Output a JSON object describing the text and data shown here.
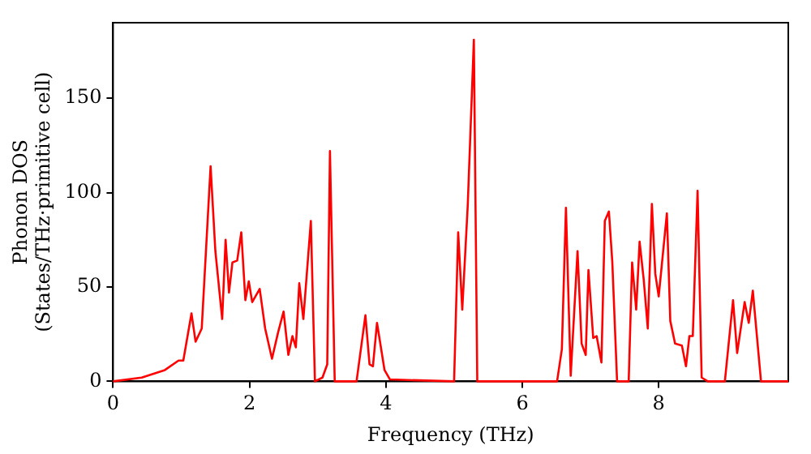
{
  "chart_data": {
    "type": "line",
    "xlabel": "Frequency (THz)",
    "ylabel": "Phonon DOS\n(States/THz·primitive cell)",
    "xlim": [
      0,
      9.9
    ],
    "ylim": [
      0,
      190
    ],
    "xticks": [
      0,
      2,
      4,
      6,
      8
    ],
    "yticks": [
      0,
      50,
      100,
      150
    ],
    "grid": false,
    "legend": false,
    "marker": "none",
    "line_style": "solid",
    "series": [
      {
        "color": "#ff0000",
        "x": [
          0,
          0.42,
          0.76,
          0.96,
          1.03,
          1.15,
          1.21,
          1.3,
          1.43,
          1.5,
          1.6,
          1.65,
          1.7,
          1.75,
          1.82,
          1.88,
          1.94,
          1.99,
          2.04,
          2.15,
          2.23,
          2.33,
          2.42,
          2.5,
          2.57,
          2.63,
          2.68,
          2.73,
          2.79,
          2.9,
          2.96,
          3.07,
          3.14,
          3.18,
          3.25,
          3.57,
          3.7,
          3.76,
          3.81,
          3.87,
          3.98,
          4.06,
          5.0,
          5.06,
          5.12,
          5.2,
          5.29,
          5.34,
          6.51,
          6.58,
          6.64,
          6.71,
          6.81,
          6.87,
          6.93,
          6.97,
          7.04,
          7.09,
          7.16,
          7.21,
          7.27,
          7.32,
          7.39,
          7.56,
          7.61,
          7.67,
          7.72,
          7.78,
          7.84,
          7.9,
          7.95,
          8.0,
          8.12,
          8.17,
          8.24,
          8.34,
          8.4,
          8.45,
          8.5,
          8.57,
          8.63,
          8.72,
          8.97,
          9.09,
          9.15,
          9.26,
          9.32,
          9.38,
          9.5,
          9.9
        ],
        "values": [
          0,
          2,
          6,
          11,
          11,
          36,
          21,
          28,
          114,
          69,
          33,
          75,
          47,
          63,
          64,
          79,
          43,
          53,
          42,
          49,
          28,
          12,
          26,
          37,
          14,
          24,
          18,
          52,
          33,
          85,
          0,
          2,
          9,
          122,
          0,
          0,
          35,
          9,
          8,
          31,
          6,
          1,
          0,
          79,
          38,
          93,
          181,
          0,
          0,
          17,
          92,
          3,
          69,
          20,
          14,
          59,
          23,
          24,
          10,
          85,
          90,
          63,
          0,
          0,
          63,
          38,
          74,
          54,
          28,
          94,
          57,
          45,
          89,
          32,
          20,
          19,
          8,
          24,
          24,
          101,
          2,
          0,
          0,
          43,
          15,
          42,
          31,
          48,
          0,
          0
        ]
      }
    ]
  }
}
